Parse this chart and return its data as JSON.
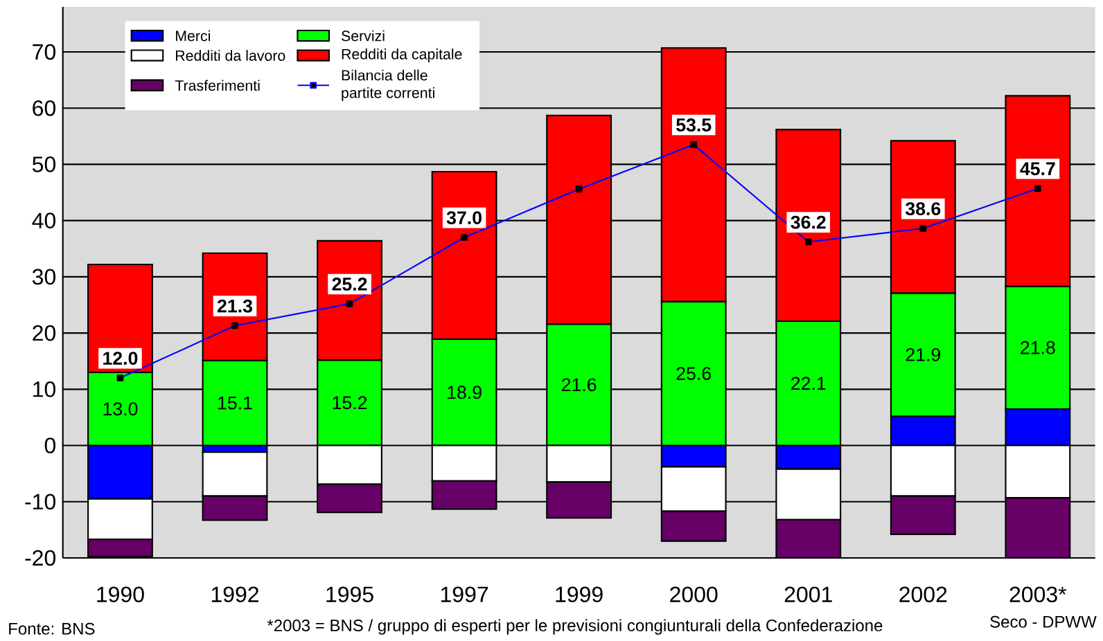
{
  "chart_data": {
    "type": "bar",
    "stacked": true,
    "grid": "y",
    "legend": "top left",
    "marker": "square",
    "line_style": "solid",
    "categories": [
      "1990",
      "1992",
      "1995",
      "1997",
      "1999",
      "2000",
      "2001",
      "2002",
      "2003*"
    ],
    "ylim": [
      -20,
      78
    ],
    "yticks": [
      -20,
      -10,
      0,
      10,
      20,
      30,
      40,
      50,
      60,
      70
    ],
    "series": [
      {
        "name": "Merci",
        "color": "#0000ff",
        "values": [
          -9.5,
          -1.2,
          null,
          null,
          0,
          -3.8,
          -4.2,
          5.2,
          6.5
        ]
      },
      {
        "name": "Servizi",
        "color": "#00ff00",
        "values": [
          13.0,
          15.1,
          15.2,
          18.9,
          21.6,
          25.6,
          22.1,
          21.9,
          21.8
        ],
        "value_labels": [
          "13.0",
          "15.1",
          "15.2",
          "18.9",
          "21.6",
          "25.6",
          "22.1",
          "21.9",
          "21.8"
        ]
      },
      {
        "name": "Redditi da lavoro",
        "color": "#ffffff",
        "values": [
          -7.2,
          -7.8,
          -6.9,
          -6.3,
          -6.5,
          -7.9,
          -9.0,
          -9.0,
          -9.3
        ]
      },
      {
        "name": "Redditi da capitale",
        "color": "#ff0000",
        "values": [
          19.2,
          19.1,
          21.2,
          29.8,
          37.1,
          45.1,
          34.1,
          27.1,
          33.9
        ]
      },
      {
        "name": "Trasferimenti",
        "color": "#660066",
        "values": [
          -3.1,
          -4.3,
          -5.0,
          -5.0,
          -6.4,
          -5.3,
          -6.8,
          -6.8,
          -10.7
        ]
      },
      {
        "name": "Bilancia delle partite correnti",
        "type": "line",
        "color": "#0000ff",
        "values": [
          12.0,
          21.3,
          25.2,
          37.0,
          45.6,
          53.5,
          36.2,
          38.6,
          45.7
        ],
        "value_labels": [
          "12.0",
          "21.3",
          "25.2",
          "37.0",
          null,
          "53.5",
          "36.2",
          "38.6",
          "45.7"
        ]
      }
    ],
    "annotations": [
      "Fonte: BNS",
      "*2003 = BNS / gruppo di esperti per le previsioni congiunturali della Confederazione",
      "Seco - DPWW"
    ]
  }
}
